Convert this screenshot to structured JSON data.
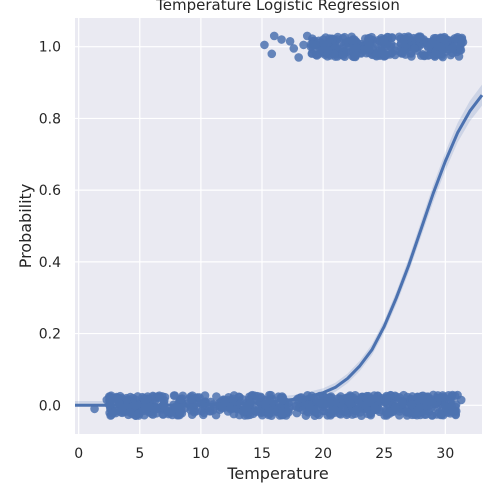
{
  "chart_data": {
    "type": "scatter",
    "title": "Temperature Logistic Regression",
    "xlabel": "Temperature",
    "ylabel": "Probability",
    "xlim": [
      -0.3,
      33
    ],
    "ylim": [
      -0.08,
      1.08
    ],
    "xticks": [
      0,
      5,
      10,
      15,
      20,
      25,
      30
    ],
    "yticks": [
      0.0,
      0.2,
      0.4,
      0.6,
      0.8,
      1.0
    ],
    "xtick_labels": [
      "0",
      "5",
      "10",
      "15",
      "20",
      "25",
      "30"
    ],
    "ytick_labels": [
      "0.0",
      "0.2",
      "0.4",
      "0.6",
      "0.8",
      "1.0"
    ],
    "grid": true,
    "background": "#eaeaf2",
    "grid_color": "#ffffff",
    "point_color": "#4c72b0",
    "line_color": "#4c72b0",
    "series": [
      {
        "kind": "scatter-jittered",
        "points_y0": [
          [
            1.3,
            -0.01
          ],
          [
            2.3,
            0.015
          ],
          [
            2.6,
            0.01
          ],
          [
            3.0,
            0.02
          ],
          [
            3.3,
            0.005
          ],
          [
            3.6,
            -0.015
          ],
          [
            3.9,
            0.02
          ],
          [
            4.2,
            -0.02
          ],
          [
            4.6,
            0.0
          ],
          [
            15.3,
            0.0
          ],
          [
            15.8,
            -0.02
          ],
          [
            31.3,
            0.015
          ],
          [
            30.5,
            0.025
          ]
        ],
        "dense_y0_range": [
          2.5,
          31.0
        ],
        "points_y1": [
          [
            15.2,
            1.005
          ],
          [
            15.8,
            0.98
          ],
          [
            16.0,
            1.03
          ],
          [
            16.6,
            1.02
          ],
          [
            17.3,
            1.015
          ],
          [
            17.6,
            0.995
          ],
          [
            18.0,
            0.97
          ],
          [
            18.4,
            1.005
          ],
          [
            18.7,
            1.03
          ]
        ],
        "dense_y1_range": [
          19.0,
          31.5
        ]
      },
      {
        "kind": "logistic-curve",
        "x": [
          -0.3,
          5,
          10,
          15,
          18,
          20,
          21,
          22,
          23,
          24,
          25,
          26,
          27,
          28,
          29,
          30,
          31,
          32,
          33
        ],
        "y": [
          0.0,
          0.0,
          0.001,
          0.007,
          0.018,
          0.035,
          0.05,
          0.075,
          0.11,
          0.155,
          0.22,
          0.3,
          0.39,
          0.49,
          0.59,
          0.68,
          0.76,
          0.82,
          0.865
        ]
      }
    ]
  }
}
